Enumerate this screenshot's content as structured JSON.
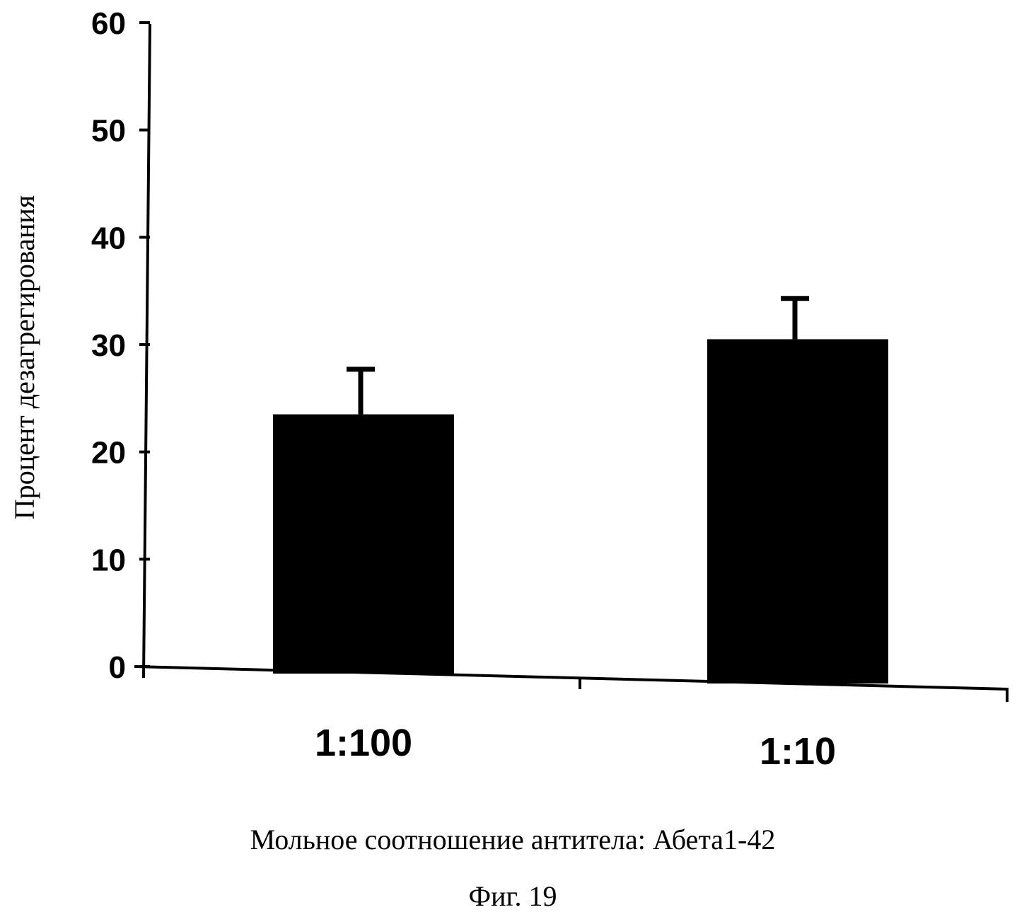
{
  "chart_data": {
    "type": "bar",
    "categories": [
      "1:100",
      "1:10"
    ],
    "values": [
      23.5,
      30.5
    ],
    "error_plus": [
      4.2,
      3.8
    ],
    "xlabel": "Мольное соотношение антитела: Абета1-42",
    "ylabel": "Процент дезагрегирования",
    "ylim": [
      0,
      60
    ],
    "yticks": [
      0,
      10,
      20,
      30,
      40,
      50,
      60
    ],
    "grid": false,
    "legend": "none",
    "bar_color": "#000000"
  },
  "caption": "Фиг. 19"
}
